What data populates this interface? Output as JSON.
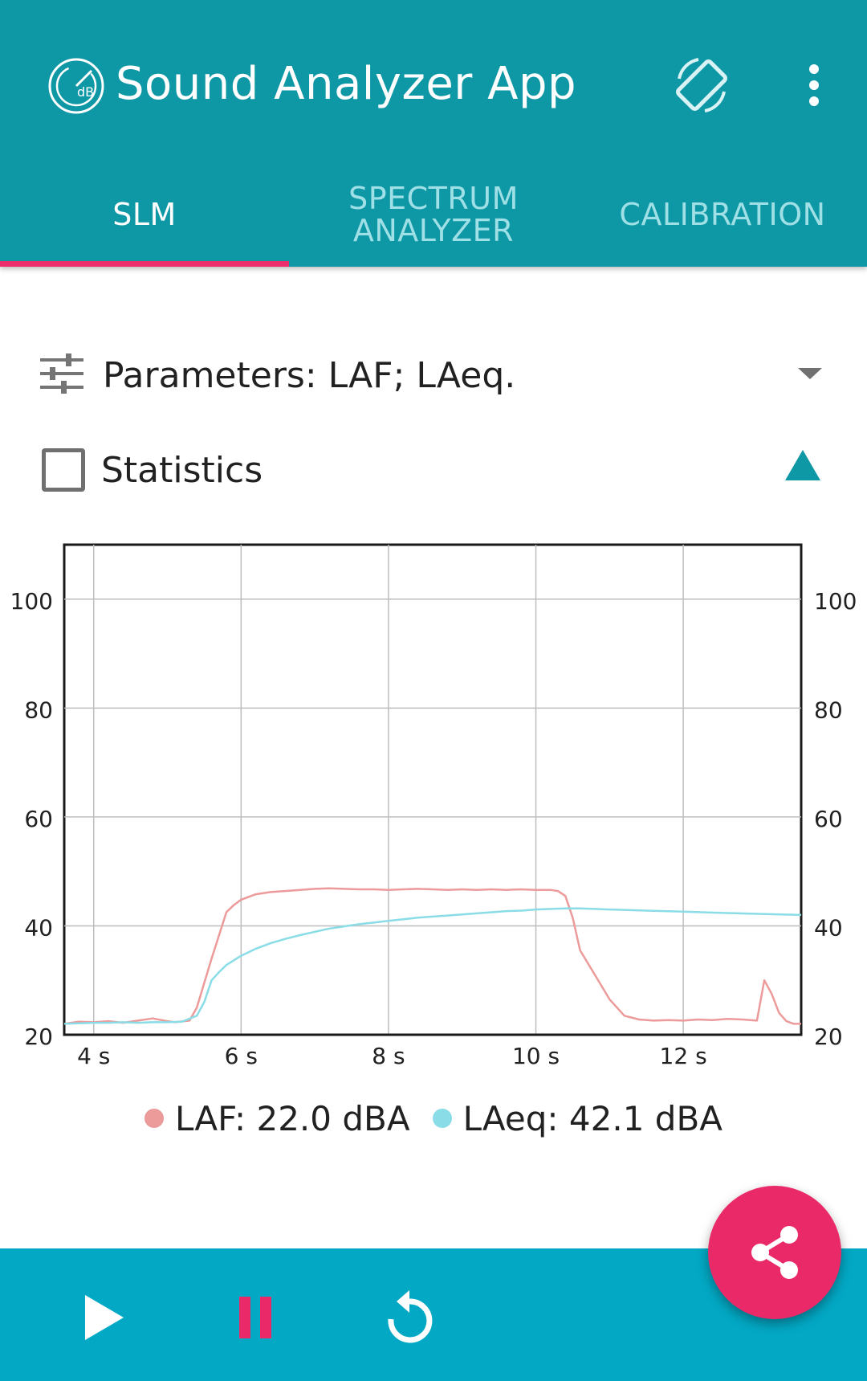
{
  "app": {
    "title": "Sound Analyzer App",
    "logo_icon": "db-meter-icon",
    "rotate_icon": "screen-rotation-icon",
    "menu_icon": "more-vert-icon",
    "primary_color": "#0e97a5",
    "accent_color": "#ec2e6c"
  },
  "tabs": [
    {
      "label": "SLM",
      "active": true
    },
    {
      "label": "SPECTRUM\nANALYZER",
      "active": false
    },
    {
      "label": "CALIBRATION",
      "active": false
    }
  ],
  "parameters": {
    "label": "Parameters: LAF; LAeq.",
    "icon": "tune-icon",
    "expanded": false
  },
  "statistics": {
    "label": "Statistics",
    "checked": false
  },
  "chart_data": {
    "type": "line",
    "xlabel": "",
    "ylabel": "",
    "x_ticks": [
      "4 s",
      "6 s",
      "8 s",
      "10 s",
      "12 s"
    ],
    "x_tick_values": [
      4,
      6,
      8,
      10,
      12
    ],
    "y_ticks": [
      "20",
      "40",
      "60",
      "80",
      "100"
    ],
    "y_tick_values": [
      20,
      40,
      60,
      80,
      100
    ],
    "xlim": [
      3.6,
      13.6
    ],
    "ylim": [
      20,
      110
    ],
    "grid": true,
    "legend_position": "bottom",
    "series": [
      {
        "name": "LAF",
        "color": "#ec9a9a",
        "x": [
          3.6,
          3.8,
          4.0,
          4.2,
          4.4,
          4.6,
          4.8,
          5.0,
          5.1,
          5.3,
          5.4,
          5.6,
          5.8,
          5.9,
          6.0,
          6.2,
          6.4,
          6.6,
          6.8,
          7.0,
          7.2,
          7.4,
          7.6,
          7.8,
          8.0,
          8.2,
          8.4,
          8.6,
          8.8,
          9.0,
          9.2,
          9.4,
          9.6,
          9.8,
          10.0,
          10.2,
          10.3,
          10.4,
          10.5,
          10.6,
          10.8,
          11.0,
          11.2,
          11.4,
          11.6,
          11.8,
          12.0,
          12.2,
          12.4,
          12.6,
          12.8,
          13.0,
          13.1,
          13.2,
          13.3,
          13.4,
          13.5,
          13.6
        ],
        "y": [
          22.0,
          22.4,
          22.3,
          22.5,
          22.2,
          22.6,
          23.0,
          22.5,
          22.3,
          22.6,
          25.0,
          34.0,
          42.5,
          43.8,
          44.8,
          45.8,
          46.2,
          46.4,
          46.6,
          46.8,
          46.9,
          46.8,
          46.7,
          46.7,
          46.6,
          46.7,
          46.8,
          46.7,
          46.6,
          46.7,
          46.6,
          46.7,
          46.6,
          46.7,
          46.6,
          46.6,
          46.4,
          45.5,
          41.5,
          35.5,
          31.0,
          26.5,
          23.5,
          22.8,
          22.6,
          22.7,
          22.6,
          22.8,
          22.7,
          22.9,
          22.8,
          22.6,
          30.0,
          27.5,
          24.0,
          22.5,
          22.0,
          22.0
        ]
      },
      {
        "name": "LAeq",
        "color": "#8adde6",
        "x": [
          3.6,
          3.8,
          4.0,
          4.2,
          4.4,
          4.6,
          4.8,
          5.0,
          5.2,
          5.4,
          5.5,
          5.6,
          5.7,
          5.8,
          6.0,
          6.2,
          6.4,
          6.6,
          6.8,
          7.0,
          7.2,
          7.4,
          7.6,
          7.8,
          8.0,
          8.2,
          8.4,
          8.6,
          8.8,
          9.0,
          9.2,
          9.4,
          9.6,
          9.8,
          10.0,
          10.2,
          10.4,
          10.6,
          10.8,
          11.0,
          11.5,
          12.0,
          12.5,
          13.0,
          13.6
        ],
        "y": [
          22.0,
          22.1,
          22.2,
          22.2,
          22.3,
          22.2,
          22.3,
          22.3,
          22.4,
          23.5,
          26.0,
          30.0,
          31.5,
          32.8,
          34.5,
          35.8,
          36.8,
          37.6,
          38.3,
          38.9,
          39.5,
          39.9,
          40.3,
          40.6,
          40.9,
          41.2,
          41.5,
          41.7,
          41.9,
          42.1,
          42.3,
          42.5,
          42.7,
          42.8,
          43.0,
          43.1,
          43.2,
          43.2,
          43.1,
          43.0,
          42.8,
          42.6,
          42.4,
          42.2,
          42.0
        ]
      }
    ]
  },
  "legend": {
    "laf_text": "LAF: 22.0 dBA",
    "laeq_text": "LAeq: 42.1 dBA",
    "laf_color": "#ec9a9a",
    "laeq_color": "#8adde6"
  },
  "controls": {
    "play_icon": "play-icon",
    "pause_icon": "pause-icon",
    "replay_icon": "replay-icon",
    "share_icon": "share-icon",
    "bar_color": "#03a8c4",
    "fab_color": "#ea2a68"
  }
}
